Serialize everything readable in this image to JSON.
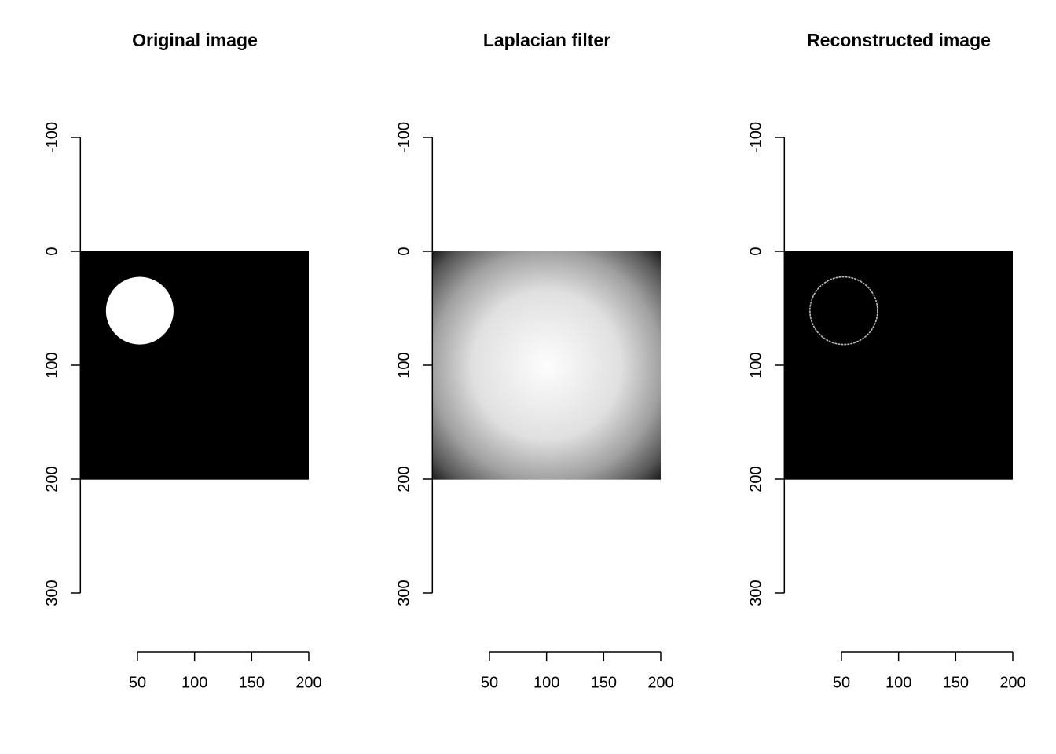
{
  "chart_data": [
    {
      "type": "image",
      "title": "Original image",
      "xlim": [
        0,
        200
      ],
      "ylim": [
        -100,
        300
      ],
      "y_reversed": true,
      "xticks": [
        50,
        100,
        150,
        200
      ],
      "yticks": [
        -100,
        0,
        100,
        200,
        300
      ]
    },
    {
      "type": "image",
      "title": "Laplacian filter",
      "xlim": [
        0,
        200
      ],
      "ylim": [
        -100,
        300
      ],
      "y_reversed": true,
      "xticks": [
        50,
        100,
        150,
        200
      ],
      "yticks": [
        -100,
        0,
        100,
        200,
        300
      ]
    },
    {
      "type": "image",
      "title": "Reconstructed image",
      "xlim": [
        0,
        200
      ],
      "ylim": [
        -100,
        300
      ],
      "y_reversed": true,
      "xticks": [
        50,
        100,
        150,
        200
      ],
      "yticks": [
        -100,
        0,
        100,
        200,
        300
      ]
    }
  ]
}
